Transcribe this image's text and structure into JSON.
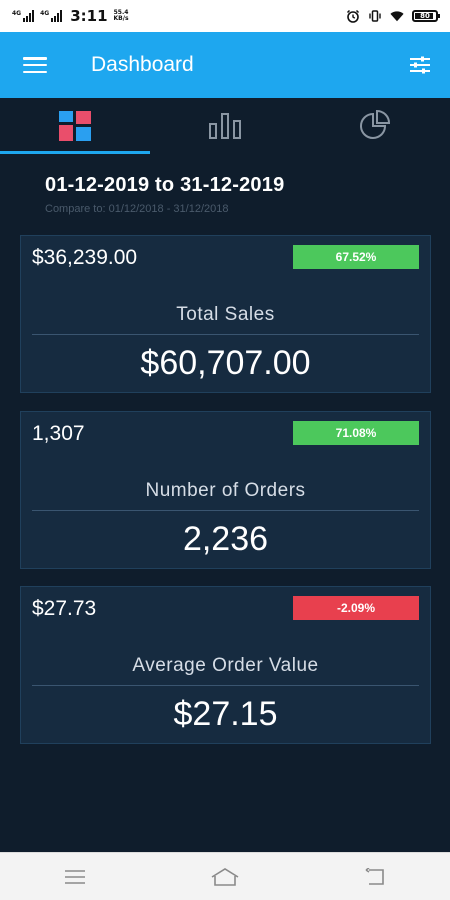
{
  "status_bar": {
    "sim1_label": "4G",
    "sim2_label": "4G",
    "time": "3:11",
    "speed_value": "55.4",
    "speed_unit": "KB/s",
    "battery_level": "80"
  },
  "app_bar": {
    "title": "Dashboard",
    "menu_icon": "hamburger-menu-icon",
    "filter_icon": "sliders-icon"
  },
  "tabs": [
    {
      "icon": "dashboard-grid-icon",
      "active": true
    },
    {
      "icon": "bar-chart-icon",
      "active": false
    },
    {
      "icon": "pie-chart-icon",
      "active": false
    }
  ],
  "date_range": {
    "title": "01-12-2019 to 31-12-2019",
    "compare": "Compare to: 01/12/2018 - 31/12/2018"
  },
  "cards": [
    {
      "previous": "$36,239.00",
      "change": "67.52%",
      "change_color": "#4cc85c",
      "label": "Total Sales",
      "value": "$60,707.00"
    },
    {
      "previous": "1,307",
      "change": "71.08%",
      "change_color": "#4cc85c",
      "label": "Number of Orders",
      "value": "2,236"
    },
    {
      "previous": "$27.73",
      "change": "-2.09%",
      "change_color": "#e8404e",
      "label": "Average Order Value",
      "value": "$27.15"
    }
  ],
  "colors": {
    "accent": "#1ea7ef",
    "background": "#0f1d2c",
    "card": "#162b40",
    "positive": "#4cc85c",
    "negative": "#e8404e"
  }
}
